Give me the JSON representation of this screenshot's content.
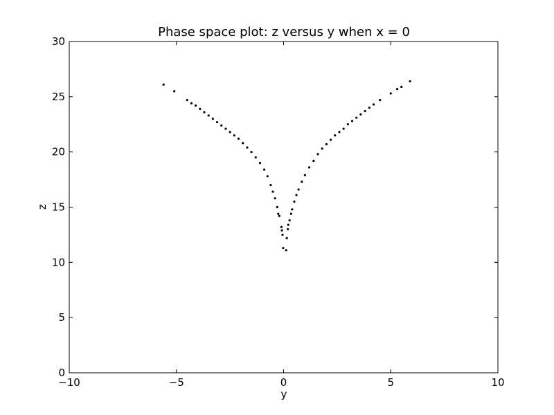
{
  "chart_data": {
    "type": "scatter",
    "title": "Phase space plot: z versus y when x = 0",
    "xlabel": "y",
    "ylabel": "z",
    "xlim": [
      -10,
      10
    ],
    "ylim": [
      0,
      30
    ],
    "xticks": [
      -10,
      -5,
      0,
      5,
      10
    ],
    "xtick_labels": [
      "−10",
      "−5",
      "0",
      "5",
      "10"
    ],
    "yticks": [
      0,
      5,
      10,
      15,
      20,
      25,
      30
    ],
    "ytick_labels": [
      "0",
      "5",
      "10",
      "15",
      "20",
      "25",
      "30"
    ],
    "grid": false,
    "legend": false,
    "colors": {
      "points": "#000000",
      "axes": "#000000",
      "background": "#ffffff"
    },
    "series": [
      {
        "points": [
          [
            -5.6,
            26.1
          ],
          [
            -5.1,
            25.5
          ],
          [
            -4.5,
            24.7
          ],
          [
            -4.3,
            24.4
          ],
          [
            -4.1,
            24.2
          ],
          [
            -3.9,
            23.9
          ],
          [
            -3.7,
            23.6
          ],
          [
            -3.5,
            23.3
          ],
          [
            -3.3,
            23.0
          ],
          [
            -3.1,
            22.7
          ],
          [
            -2.9,
            22.4
          ],
          [
            -2.7,
            22.1
          ],
          [
            -2.5,
            21.8
          ],
          [
            -2.3,
            21.5
          ],
          [
            -2.1,
            21.2
          ],
          [
            -1.9,
            20.8
          ],
          [
            -1.7,
            20.4
          ],
          [
            -1.5,
            20.0
          ],
          [
            -1.3,
            19.5
          ],
          [
            -1.1,
            19.0
          ],
          [
            -0.9,
            18.4
          ],
          [
            -0.75,
            17.8
          ],
          [
            -0.6,
            17.0
          ],
          [
            -0.5,
            16.4
          ],
          [
            -0.4,
            15.8
          ],
          [
            -0.3,
            15.0
          ],
          [
            -0.25,
            14.4
          ],
          [
            -0.2,
            14.2
          ],
          [
            -0.1,
            13.2
          ],
          [
            -0.08,
            12.9
          ],
          [
            -0.05,
            12.5
          ],
          [
            -0.02,
            11.3
          ],
          [
            0.12,
            11.1
          ],
          [
            0.15,
            12.2
          ],
          [
            0.2,
            13.0
          ],
          [
            0.22,
            13.4
          ],
          [
            0.28,
            13.8
          ],
          [
            0.35,
            14.4
          ],
          [
            0.4,
            14.8
          ],
          [
            0.5,
            15.5
          ],
          [
            0.6,
            16.1
          ],
          [
            0.7,
            16.6
          ],
          [
            0.85,
            17.3
          ],
          [
            1.0,
            17.9
          ],
          [
            1.2,
            18.6
          ],
          [
            1.4,
            19.2
          ],
          [
            1.6,
            19.8
          ],
          [
            1.8,
            20.3
          ],
          [
            2.0,
            20.7
          ],
          [
            2.2,
            21.1
          ],
          [
            2.4,
            21.5
          ],
          [
            2.6,
            21.8
          ],
          [
            2.8,
            22.1
          ],
          [
            3.0,
            22.5
          ],
          [
            3.2,
            22.8
          ],
          [
            3.4,
            23.1
          ],
          [
            3.6,
            23.4
          ],
          [
            3.8,
            23.7
          ],
          [
            4.0,
            24.0
          ],
          [
            4.2,
            24.3
          ],
          [
            4.5,
            24.7
          ],
          [
            5.0,
            25.3
          ],
          [
            5.3,
            25.7
          ],
          [
            5.5,
            25.9
          ],
          [
            5.9,
            26.4
          ]
        ]
      }
    ]
  }
}
